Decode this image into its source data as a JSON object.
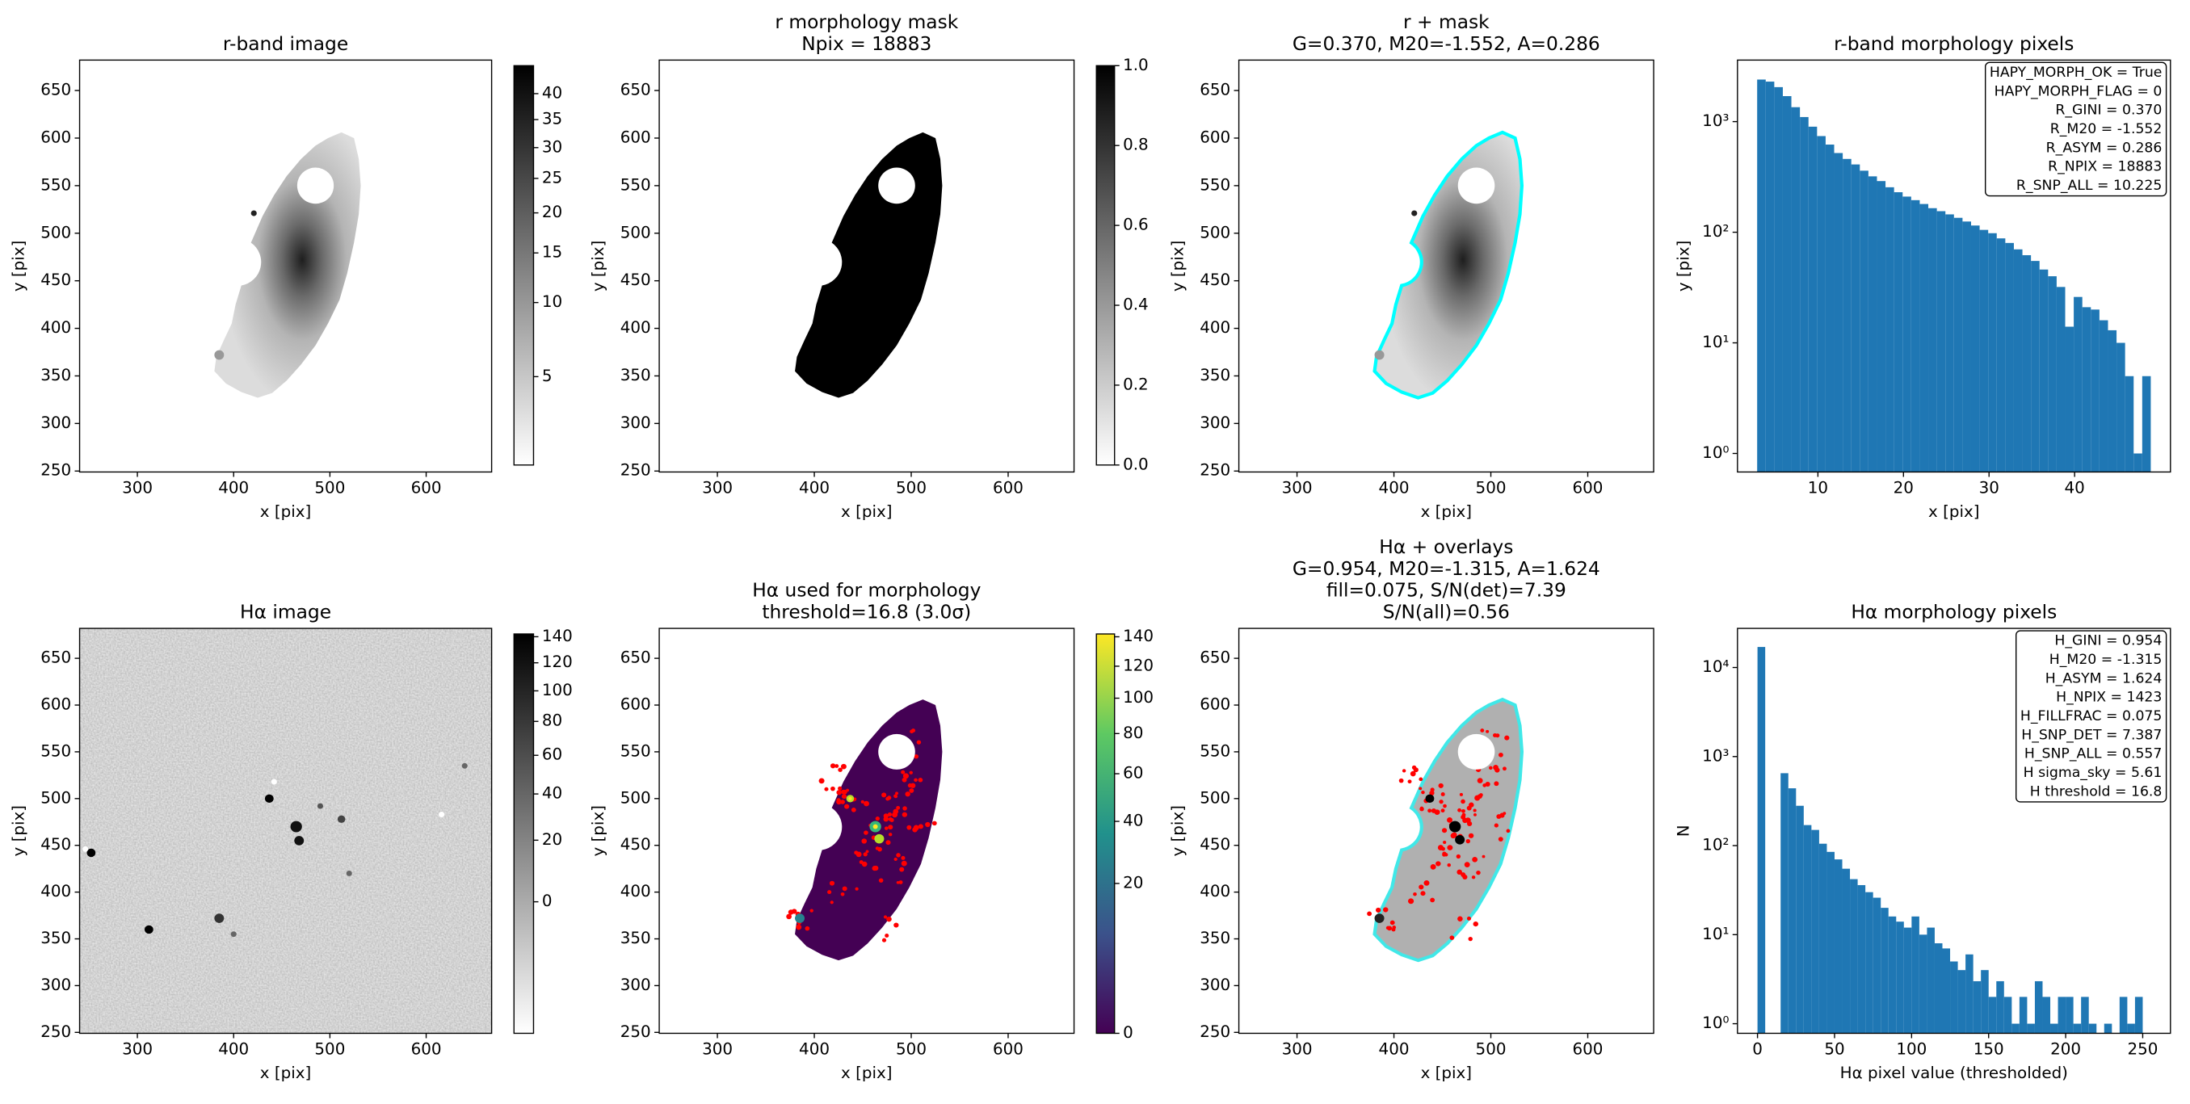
{
  "chart_data": [
    {
      "type": "image",
      "title": "r-band image",
      "xlabel": "x [pix]",
      "ylabel": "y [pix]",
      "xlim": [
        240,
        668
      ],
      "ylim": [
        249,
        682
      ],
      "xticks": [
        300,
        400,
        500,
        600
      ],
      "yticks": [
        250,
        300,
        350,
        400,
        450,
        500,
        550,
        600,
        650
      ],
      "colormap": "gray_r",
      "colorbar": {
        "clim": [
          2.9,
          45.8
        ],
        "scale": "sqrt",
        "ticks": [
          5,
          10,
          15,
          20,
          25,
          30,
          35,
          40
        ]
      }
    },
    {
      "type": "image",
      "title": [
        "r morphology mask",
        "Npix = 18883"
      ],
      "xlabel": "x [pix]",
      "ylabel": "y [pix]",
      "xlim": [
        240,
        668
      ],
      "ylim": [
        249,
        682
      ],
      "xticks": [
        300,
        400,
        500,
        600
      ],
      "yticks": [
        250,
        300,
        350,
        400,
        450,
        500,
        550,
        600,
        650
      ],
      "colormap": "gray_r",
      "colorbar": {
        "clim": [
          0,
          1
        ],
        "scale": "linear",
        "ticks": [
          {
            "value": 0,
            "label": "0.0"
          },
          0.2,
          0.4,
          0.6,
          0.8,
          {
            "value": 1,
            "label": "1.0"
          }
        ]
      }
    },
    {
      "type": "image",
      "title": [
        "r + mask",
        "G=0.370, M20=-1.552, A=0.286"
      ],
      "xlabel": "x [pix]",
      "ylabel": "y [pix]",
      "xlim": [
        240,
        668
      ],
      "ylim": [
        249,
        682
      ],
      "xticks": [
        300,
        400,
        500,
        600
      ],
      "yticks": [
        250,
        300,
        350,
        400,
        450,
        500,
        550,
        600,
        650
      ],
      "colormap": "gray_r"
    },
    {
      "type": "histogram",
      "title": "r-band morphology pixels",
      "xlabel": "x [pix]",
      "ylabel": "y [pix]",
      "color": "#1f77b4",
      "yscale": "log",
      "xlim": [
        0.6,
        51.2
      ],
      "ylim": [
        0.68,
        3600
      ],
      "xticks": [
        10,
        20,
        30,
        40
      ],
      "yticks": [
        {
          "value": 1,
          "label": "10⁰"
        },
        {
          "value": 10,
          "label": "10¹"
        },
        {
          "value": 100,
          "label": "10²"
        },
        {
          "value": 1000,
          "label": "10³"
        }
      ],
      "bins": [
        2.9,
        3.9,
        4.9,
        5.9,
        6.9,
        7.9,
        8.9,
        9.9,
        10.9,
        11.9,
        12.9,
        13.9,
        14.9,
        15.9,
        16.9,
        17.9,
        18.9,
        19.9,
        20.9,
        21.9,
        22.9,
        23.9,
        24.9,
        25.9,
        26.9,
        27.9,
        28.9,
        29.9,
        30.9,
        31.9,
        32.9,
        33.9,
        34.9,
        35.9,
        36.9,
        37.9,
        38.9,
        39.9,
        40.9,
        41.9,
        42.9,
        43.9,
        44.9,
        45.9,
        46.9,
        47.9,
        48.9
      ],
      "values": [
        2400,
        2300,
        2050,
        1700,
        1350,
        1100,
        900,
        740,
        620,
        520,
        460,
        410,
        360,
        320,
        290,
        255,
        230,
        210,
        195,
        180,
        165,
        155,
        145,
        135,
        125,
        115,
        105,
        98,
        88,
        80,
        70,
        62,
        55,
        46,
        40,
        32,
        14,
        26,
        21,
        20,
        16,
        13,
        10,
        5,
        1,
        5
      ],
      "annotation": [
        "HAPY_MORPH_OK = True",
        "HAPY_MORPH_FLAG = 0",
        "R_GINI = 0.370",
        "R_M20 = -1.552",
        "R_ASYM = 0.286",
        "R_NPIX = 18883",
        "R_SNP_ALL = 10.225"
      ]
    },
    {
      "type": "image",
      "title": "Hα image",
      "xlabel": "x [pix]",
      "ylabel": "y [pix]",
      "xlim": [
        240,
        668
      ],
      "ylim": [
        249,
        682
      ],
      "xticks": [
        300,
        400,
        500,
        600
      ],
      "yticks": [
        250,
        300,
        350,
        400,
        450,
        500,
        550,
        600,
        650
      ],
      "colormap": "gray_r",
      "colorbar": {
        "clim": [
          -17.3,
          142.2
        ],
        "scale": "sqrt",
        "ticks": [
          0,
          20,
          40,
          60,
          80,
          100,
          120,
          140
        ]
      }
    },
    {
      "type": "image",
      "title": [
        "Hα used for morphology",
        "threshold=16.8 (3.0σ)"
      ],
      "xlabel": "x [pix]",
      "ylabel": "y [pix]",
      "xlim": [
        240,
        668
      ],
      "ylim": [
        249,
        682
      ],
      "xticks": [
        300,
        400,
        500,
        600
      ],
      "yticks": [
        250,
        300,
        350,
        400,
        450,
        500,
        550,
        600,
        650
      ],
      "colormap": "viridis",
      "colorbar": {
        "clim": [
          0,
          142
        ],
        "scale": "sqrt",
        "ticks": [
          0,
          20,
          40,
          60,
          80,
          100,
          120,
          140
        ]
      }
    },
    {
      "type": "image",
      "title": [
        "Hα + overlays",
        "G=0.954, M20=-1.315, A=1.624",
        "fill=0.075, S/N(det)=7.39",
        "S/N(all)=0.56"
      ],
      "xlabel": "x [pix]",
      "ylabel": "y [pix]",
      "xlim": [
        240,
        668
      ],
      "ylim": [
        249,
        682
      ],
      "xticks": [
        300,
        400,
        500,
        600
      ],
      "yticks": [
        250,
        300,
        350,
        400,
        450,
        500,
        550,
        600,
        650
      ],
      "colormap": "gray_r"
    },
    {
      "type": "histogram",
      "title": "Hα morphology pixels",
      "xlabel": "Hα pixel value (thresholded)",
      "ylabel": "N",
      "color": "#1f77b4",
      "yscale": "log",
      "xlim": [
        -13,
        268
      ],
      "ylim": [
        0.78,
        27500
      ],
      "xticks": [
        0,
        50,
        100,
        150,
        200,
        250
      ],
      "yticks": [
        {
          "value": 1,
          "label": "10⁰"
        },
        {
          "value": 10,
          "label": "10¹"
        },
        {
          "value": 100,
          "label": "10²"
        },
        {
          "value": 1000,
          "label": "10³"
        },
        {
          "value": 10000,
          "label": "10⁴"
        }
      ],
      "bins": [
        0,
        5,
        10,
        15,
        20,
        25,
        30,
        35,
        40,
        45,
        50,
        55,
        60,
        65,
        70,
        75,
        80,
        85,
        90,
        95,
        100,
        105,
        110,
        115,
        120,
        125,
        130,
        135,
        140,
        145,
        150,
        155,
        160,
        165,
        170,
        175,
        180,
        185,
        190,
        195,
        200,
        205,
        210,
        215,
        220,
        225,
        230,
        235,
        240,
        245,
        250
      ],
      "values": [
        17000,
        0,
        0,
        650,
        440,
        280,
        170,
        150,
        105,
        85,
        70,
        55,
        42,
        36,
        30,
        26,
        20,
        16,
        14,
        12,
        16,
        10,
        12,
        8,
        7,
        5,
        4,
        6,
        3,
        4,
        2,
        3,
        2,
        1,
        2,
        1,
        3,
        2,
        1,
        2,
        2,
        1,
        2,
        1,
        0,
        1,
        0,
        2,
        1,
        2
      ],
      "annotation": [
        "H_GINI = 0.954",
        "H_M20 = -1.315",
        "H_ASYM = 1.624",
        "H_NPIX = 1423",
        "H_FILLFRAC = 0.075",
        "H_SNP_DET = 7.387",
        "H_SNP_ALL = 0.557",
        "H sigma_sky = 5.61",
        "H threshold = 16.8"
      ]
    }
  ]
}
